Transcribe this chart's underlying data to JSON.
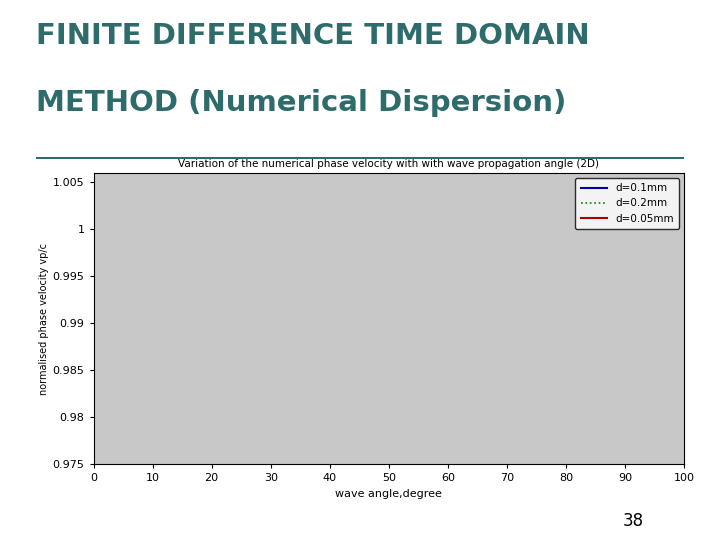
{
  "title_line1": "FINITE DIFFERENCE TIME DOMAIN",
  "title_line2": "METHOD (Numerical Dispersion)",
  "title_color": "#2E6B6B",
  "slide_bg": "#FFFFFF",
  "chart_bg": "#C8C8C8",
  "border_color": "#2E6B6B",
  "page_number": "38",
  "plot_title": "Variation of the numerical phase velocity with with wave propagation angle (2D)",
  "xlabel": "wave angle,degree",
  "ylabel": "normalised phase velocity vp/c",
  "xlim": [
    0,
    100
  ],
  "ylim": [
    0.975,
    1.006
  ],
  "xticks": [
    0,
    10,
    20,
    30,
    40,
    50,
    60,
    70,
    80,
    90,
    100
  ],
  "yticks": [
    0.975,
    0.98,
    0.985,
    0.99,
    0.995,
    1,
    1.005
  ],
  "legend_labels": [
    "d=0.1mm",
    "d=0.2mm",
    "d=0.05mm"
  ],
  "line_colors": [
    "#0000AA",
    "#008800",
    "#AA0000"
  ]
}
